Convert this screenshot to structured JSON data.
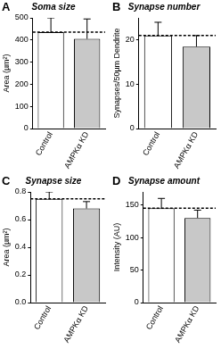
{
  "chart_data": [
    {
      "type": "bar",
      "panel": "A",
      "title": "Soma size",
      "y_label": "Area (µm²)",
      "categories": [
        "Control",
        "AMPKα KD"
      ],
      "values": [
        435,
        405
      ],
      "errors": [
        65,
        90
      ],
      "colors": [
        "#ffffff",
        "#c8c8c8"
      ],
      "reference_line": 435,
      "ylim": [
        0,
        500
      ],
      "yticks": [
        0,
        100,
        200,
        300,
        400,
        500
      ],
      "grid": false
    },
    {
      "type": "bar",
      "panel": "B",
      "title": "Synapse number",
      "y_label": "Synapses/50µm Dendrite",
      "categories": [
        "Control",
        "AMPKα KD"
      ],
      "values": [
        21,
        18.5
      ],
      "errors": [
        3,
        2.5
      ],
      "colors": [
        "#ffffff",
        "#c8c8c8"
      ],
      "reference_line": 21,
      "ylim": [
        0,
        25
      ],
      "yticks": [
        0,
        10,
        20
      ],
      "grid": false
    },
    {
      "type": "bar",
      "panel": "C",
      "title": "Synapse size",
      "y_label": "Area (µm²)",
      "categories": [
        "Control",
        "AMPKα KD"
      ],
      "values": [
        0.75,
        0.68
      ],
      "errors": [
        0.05,
        0.05
      ],
      "colors": [
        "#ffffff",
        "#c8c8c8"
      ],
      "reference_line": 0.75,
      "ylim": [
        0,
        0.8
      ],
      "yticks": [
        {
          "value": 0,
          "label": "0.0"
        },
        0.2,
        0.4,
        0.6,
        0.8
      ],
      "grid": false
    },
    {
      "type": "bar",
      "panel": "D",
      "title": "Synapse amount",
      "y_label": "Intensity (AU)",
      "categories": [
        "Control",
        "AMPKα KD"
      ],
      "values": [
        145,
        130
      ],
      "errors": [
        15,
        12
      ],
      "colors": [
        "#ffffff",
        "#c8c8c8"
      ],
      "reference_line": 145,
      "ylim": [
        0,
        170
      ],
      "yticks": [
        0,
        50,
        100,
        150
      ],
      "grid": false
    }
  ]
}
